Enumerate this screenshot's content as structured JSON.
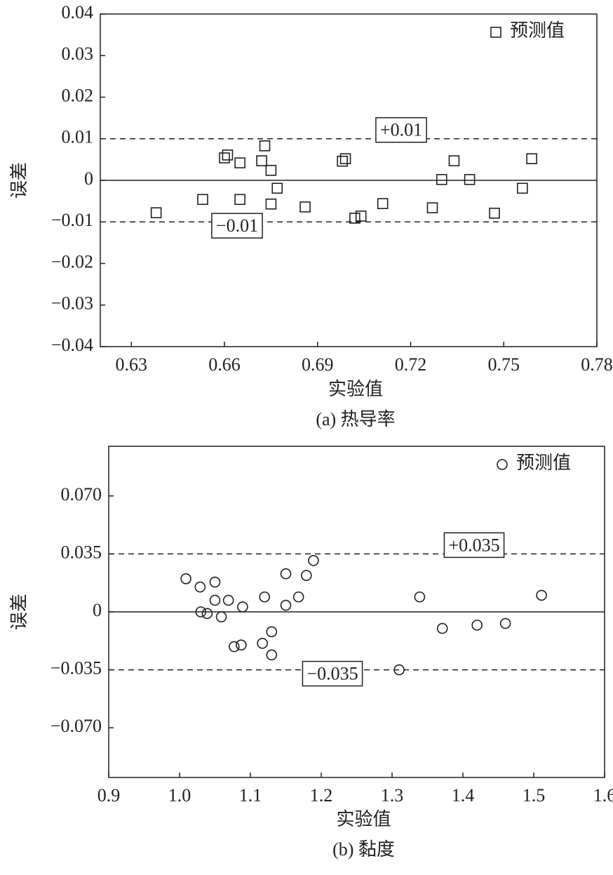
{
  "chart_data": [
    {
      "type": "scatter",
      "xlabel": "实验值",
      "ylabel": "误差",
      "caption": "(a) 热导率",
      "xlim": [
        0.62,
        0.78
      ],
      "xticks": [
        0.63,
        0.66,
        0.69,
        0.72,
        0.75,
        0.78
      ],
      "ylim": [
        -0.04,
        0.04
      ],
      "yticks": [
        {
          "value": -0.04,
          "label": "−0.04"
        },
        {
          "value": -0.03,
          "label": "−0.03"
        },
        {
          "value": -0.02,
          "label": "−0.02"
        },
        {
          "value": -0.01,
          "label": "−0.01"
        },
        0,
        0.01,
        0.02,
        0.03,
        0.04
      ],
      "ref_lines": [
        {
          "value": 0.01,
          "label": "+0.01",
          "style": "dashed"
        },
        {
          "value": 0,
          "style": "solid"
        },
        {
          "value": -0.01,
          "label": "−0.01",
          "style": "dashed"
        }
      ],
      "legend": "upper right",
      "series": [
        {
          "name": "预测值",
          "marker": "square",
          "color": "#231f20",
          "x": [
            0.638,
            0.653,
            0.66,
            0.661,
            0.665,
            0.665,
            0.672,
            0.673,
            0.675,
            0.675,
            0.677,
            0.686,
            0.698,
            0.699,
            0.702,
            0.704,
            0.711,
            0.727,
            0.73,
            0.734,
            0.739,
            0.747,
            0.756,
            0.759
          ],
          "values": [
            -0.0078,
            -0.0046,
            0.0054,
            0.0061,
            0.0042,
            -0.0046,
            0.0047,
            0.0083,
            0.0024,
            -0.0057,
            -0.0019,
            -0.0064,
            0.0046,
            0.0052,
            -0.0091,
            -0.0086,
            -0.0056,
            -0.0066,
            0.0002,
            0.0047,
            0.0002,
            -0.0079,
            -0.0019,
            0.0052
          ]
        }
      ]
    },
    {
      "type": "scatter",
      "xlabel": "实验值",
      "ylabel": "误差",
      "caption": "(b) 黏度",
      "xlim": [
        0.9,
        1.6
      ],
      "xticks": [
        0.9,
        {
          "value": 1,
          "label": "1.0"
        },
        1.1,
        1.2,
        1.3,
        1.4,
        1.5,
        1.6
      ],
      "ylim": [
        -0.1,
        0.1
      ],
      "yticks": [
        {
          "value": -0.07,
          "label": "−0.070"
        },
        {
          "value": -0.035,
          "label": "−0.035"
        },
        0,
        0.035,
        {
          "value": 0.07,
          "label": "0.070"
        }
      ],
      "ref_lines": [
        {
          "value": 0.035,
          "label": "+0.035",
          "style": "dashed"
        },
        {
          "value": 0,
          "style": "solid"
        },
        {
          "value": -0.035,
          "label": "−0.035",
          "style": "dashed"
        }
      ],
      "legend": "upper right",
      "series": [
        {
          "name": "预测值",
          "marker": "circle",
          "color": "#231f20",
          "x": [
            1.009,
            1.029,
            1.05,
            1.03,
            1.039,
            1.05,
            1.059,
            1.069,
            1.077,
            1.087,
            1.089,
            1.117,
            1.12,
            1.13,
            1.13,
            1.15,
            1.15,
            1.168,
            1.179,
            1.189,
            1.31,
            1.339,
            1.371,
            1.42,
            1.46,
            1.511
          ],
          "values": [
            0.02,
            0.015,
            0.018,
            0.0,
            -0.001,
            0.007,
            -0.003,
            0.007,
            -0.021,
            -0.02,
            0.003,
            -0.019,
            0.009,
            -0.012,
            -0.026,
            0.023,
            0.004,
            0.009,
            0.022,
            0.031,
            -0.035,
            0.009,
            -0.01,
            -0.008,
            -0.007,
            0.01
          ]
        }
      ]
    }
  ]
}
